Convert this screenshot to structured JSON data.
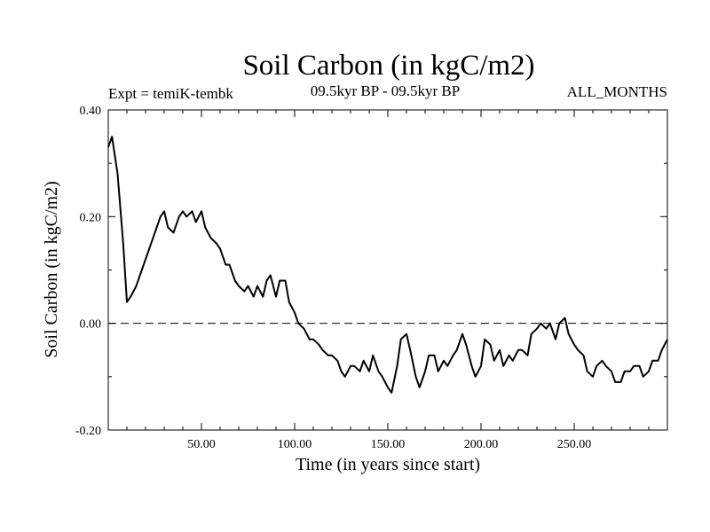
{
  "chart_data": {
    "type": "line",
    "title": "Soil Carbon (in kgC/m2)",
    "subtitle_left": "Expt = temiK-tembk",
    "subtitle_center": "09.5kyr BP - 09.5kyr BP",
    "subtitle_right": "ALL_MONTHS",
    "xlabel": "Time (in years since start)",
    "ylabel": "Soil Carbon (in kgC/m2)",
    "xlim": [
      0,
      300
    ],
    "ylim": [
      -0.2,
      0.4
    ],
    "x_ticks": [
      50,
      100,
      150,
      200,
      250
    ],
    "x_tick_labels": [
      "50.00",
      "100.00",
      "150.00",
      "200.00",
      "250.00"
    ],
    "y_ticks": [
      -0.2,
      0.0,
      0.2,
      0.4
    ],
    "y_tick_labels": [
      "-0.20",
      "0.00",
      "0.20",
      "0.40"
    ],
    "reference_line": {
      "y": 0.0,
      "style": "dashed"
    },
    "series": [
      {
        "name": "Soil Carbon",
        "color": "#000000",
        "x": [
          0,
          2,
          5,
          8,
          10,
          12,
          15,
          18,
          22,
          25,
          28,
          30,
          32,
          35,
          38,
          40,
          42,
          45,
          47,
          50,
          52,
          55,
          58,
          60,
          63,
          65,
          68,
          70,
          73,
          75,
          78,
          80,
          83,
          85,
          87,
          90,
          92,
          95,
          97,
          100,
          102,
          105,
          108,
          110,
          113,
          115,
          118,
          120,
          123,
          125,
          127,
          130,
          132,
          135,
          137,
          140,
          142,
          145,
          147,
          150,
          152,
          155,
          157,
          160,
          162,
          165,
          167,
          170,
          172,
          175,
          177,
          180,
          182,
          185,
          187,
          190,
          192,
          195,
          197,
          200,
          202,
          205,
          207,
          210,
          212,
          215,
          217,
          220,
          222,
          225,
          227,
          230,
          232,
          235,
          237,
          240,
          242,
          245,
          247,
          250,
          252,
          255,
          257,
          260,
          262,
          265,
          267,
          270,
          272,
          275,
          277,
          280,
          282,
          285,
          287,
          290,
          292,
          295,
          297,
          300
        ],
        "values": [
          0.33,
          0.35,
          0.28,
          0.15,
          0.04,
          0.05,
          0.07,
          0.1,
          0.14,
          0.17,
          0.2,
          0.21,
          0.18,
          0.17,
          0.2,
          0.21,
          0.2,
          0.21,
          0.19,
          0.21,
          0.18,
          0.16,
          0.15,
          0.14,
          0.11,
          0.11,
          0.08,
          0.07,
          0.06,
          0.07,
          0.05,
          0.07,
          0.05,
          0.08,
          0.09,
          0.05,
          0.08,
          0.08,
          0.04,
          0.02,
          0.0,
          -0.01,
          -0.03,
          -0.03,
          -0.04,
          -0.05,
          -0.06,
          -0.06,
          -0.07,
          -0.09,
          -0.1,
          -0.08,
          -0.08,
          -0.09,
          -0.07,
          -0.09,
          -0.06,
          -0.09,
          -0.1,
          -0.12,
          -0.13,
          -0.08,
          -0.03,
          -0.02,
          -0.05,
          -0.1,
          -0.12,
          -0.09,
          -0.06,
          -0.06,
          -0.09,
          -0.07,
          -0.08,
          -0.06,
          -0.05,
          -0.02,
          -0.04,
          -0.08,
          -0.1,
          -0.08,
          -0.03,
          -0.04,
          -0.07,
          -0.05,
          -0.08,
          -0.06,
          -0.07,
          -0.05,
          -0.05,
          -0.06,
          -0.02,
          -0.01,
          0.0,
          -0.01,
          0.0,
          -0.03,
          0.0,
          0.01,
          -0.02,
          -0.04,
          -0.05,
          -0.06,
          -0.09,
          -0.1,
          -0.08,
          -0.07,
          -0.08,
          -0.09,
          -0.11,
          -0.11,
          -0.09,
          -0.09,
          -0.08,
          -0.08,
          -0.1,
          -0.09,
          -0.07,
          -0.07,
          -0.05,
          -0.03
        ]
      }
    ]
  }
}
